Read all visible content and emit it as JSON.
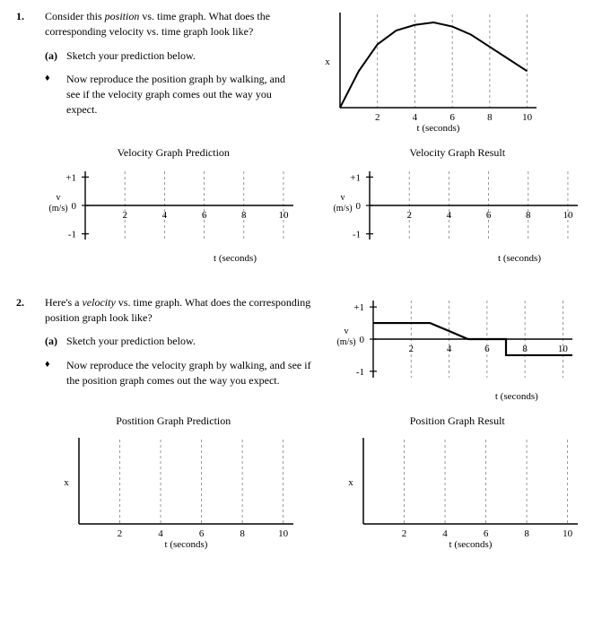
{
  "q1": {
    "number": "1.",
    "text_parts": [
      "Consider this ",
      "position",
      " vs. time graph.  What does the corresponding velocity vs. time graph look like?"
    ],
    "sub_a_label": "(a)",
    "sub_a_text": "Sketch your prediction below.",
    "bullet_text": "Now reproduce the position graph by walking, and see if the velocity graph comes out the way you expect.",
    "pos_graph": {
      "xlabel": "t (seconds)",
      "ylabel": "x",
      "xticks": [
        2,
        4,
        6,
        8,
        10
      ],
      "curve": [
        [
          0,
          0
        ],
        [
          1,
          0.45
        ],
        [
          2,
          0.78
        ],
        [
          3,
          0.95
        ],
        [
          4,
          1.02
        ],
        [
          5,
          1.05
        ],
        [
          6,
          1.0
        ],
        [
          7,
          0.9
        ],
        [
          8,
          0.75
        ],
        [
          9,
          0.6
        ],
        [
          10,
          0.45
        ]
      ],
      "stroke": "#000000",
      "stroke_width": 2,
      "grid_color": "#808080"
    },
    "vel_pred": {
      "title": "Velocity Graph Prediction",
      "ylabel": "v\n(m/s)",
      "xlabel": "t (seconds)",
      "xticks": [
        2,
        4,
        6,
        8,
        10
      ],
      "yticks": [
        -1,
        0,
        1
      ],
      "grid_color": "#808080"
    },
    "vel_res": {
      "title": "Velocity Graph Result",
      "ylabel": "v\n(m/s)",
      "xlabel": "t (seconds)",
      "xticks": [
        2,
        4,
        6,
        8,
        10
      ],
      "yticks": [
        -1,
        0,
        1
      ],
      "grid_color": "#808080"
    }
  },
  "q2": {
    "number": "2.",
    "text_parts": [
      "Here's a ",
      "velocity",
      " vs. time graph.  What does the corresponding position graph look like?"
    ],
    "sub_a_label": "(a)",
    "sub_a_text": "Sketch your prediction below.",
    "bullet_text": "Now reproduce the velocity graph by walking, and see if the position graph comes out the way you expect.",
    "vel_graph": {
      "ylabel": "v\n(m/s)",
      "xlabel": "t (seconds)",
      "xticks": [
        2,
        4,
        6,
        8,
        10
      ],
      "yticks": [
        -1,
        0,
        1
      ],
      "curve": [
        [
          0,
          0.5
        ],
        [
          3,
          0.5
        ],
        [
          5,
          0
        ],
        [
          7,
          0
        ],
        [
          7,
          -0.5
        ],
        [
          10.5,
          -0.5
        ]
      ],
      "stroke": "#000000",
      "stroke_width": 2.2,
      "grid_color": "#808080"
    },
    "pos_pred": {
      "title": "Postition Graph Prediction",
      "ylabel": "x",
      "xlabel": "t (seconds)",
      "xticks": [
        2,
        4,
        6,
        8,
        10
      ],
      "grid_color": "#808080"
    },
    "pos_res": {
      "title": "Position Graph Result",
      "ylabel": "x",
      "xlabel": "t (seconds)",
      "xticks": [
        2,
        4,
        6,
        8,
        10
      ],
      "grid_color": "#808080"
    }
  }
}
